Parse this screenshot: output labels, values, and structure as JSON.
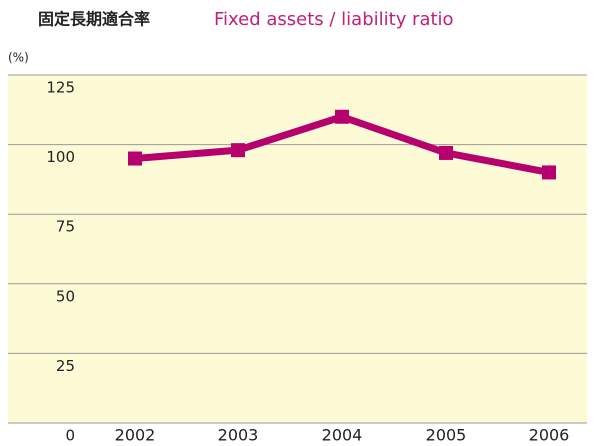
{
  "chart_data": {
    "type": "line",
    "title": "固定長期適合率",
    "subtitle": "Fixed assets / liability ratio",
    "y_label": "(%)",
    "categories": [
      "2002",
      "2003",
      "2004",
      "2005",
      "2006"
    ],
    "series": [
      {
        "name": "Fixed assets / liability ratio",
        "color": "#b5006e",
        "values": [
          95,
          98,
          110,
          97,
          90
        ]
      }
    ],
    "ylim": [
      0,
      125
    ],
    "yticks": [
      0,
      25,
      50,
      75,
      100,
      125
    ],
    "grid": true
  }
}
